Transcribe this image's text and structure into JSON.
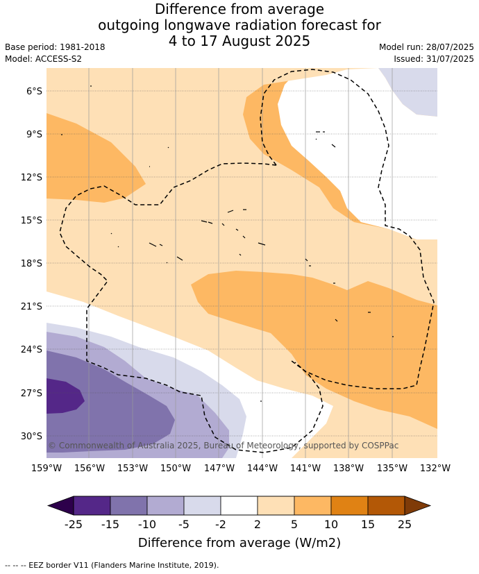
{
  "title": {
    "line1": "Difference from average",
    "line2": "outgoing longwave radiation forecast for",
    "line3": "4 to 17 August 2025"
  },
  "meta": {
    "base_period": "Base period: 1981-2018",
    "model": "Model: ACCESS-S2",
    "model_run": "Model run: 28/07/2025",
    "issued": "Issued: 31/07/2025"
  },
  "map": {
    "lat_labels": [
      "6°S",
      "9°S",
      "12°S",
      "15°S",
      "18°S",
      "21°S",
      "24°S",
      "27°S",
      "30°S"
    ],
    "lon_labels": [
      "159°W",
      "156°W",
      "153°W",
      "150°W",
      "147°W",
      "144°W",
      "141°W",
      "138°W",
      "135°W",
      "132°W"
    ],
    "copyright": "© Commonwealth of Australia 2025, Bureau of Meteorology, supported by COSPPac"
  },
  "colorbar": {
    "ticks": [
      "-25",
      "-15",
      "-10",
      "-5",
      "-2",
      "2",
      "5",
      "10",
      "15",
      "25"
    ],
    "colors": [
      "#2d004b",
      "#542788",
      "#8073ac",
      "#b2abd2",
      "#d8daeb",
      "#ffffff",
      "#fee0b6",
      "#fdb863",
      "#e08214",
      "#b35806",
      "#7f3b08"
    ],
    "label": "Difference from average (W/m2)"
  },
  "footer": "--  --  -- EEZ border V11 (Flanders Marine Institute, 2019)."
}
